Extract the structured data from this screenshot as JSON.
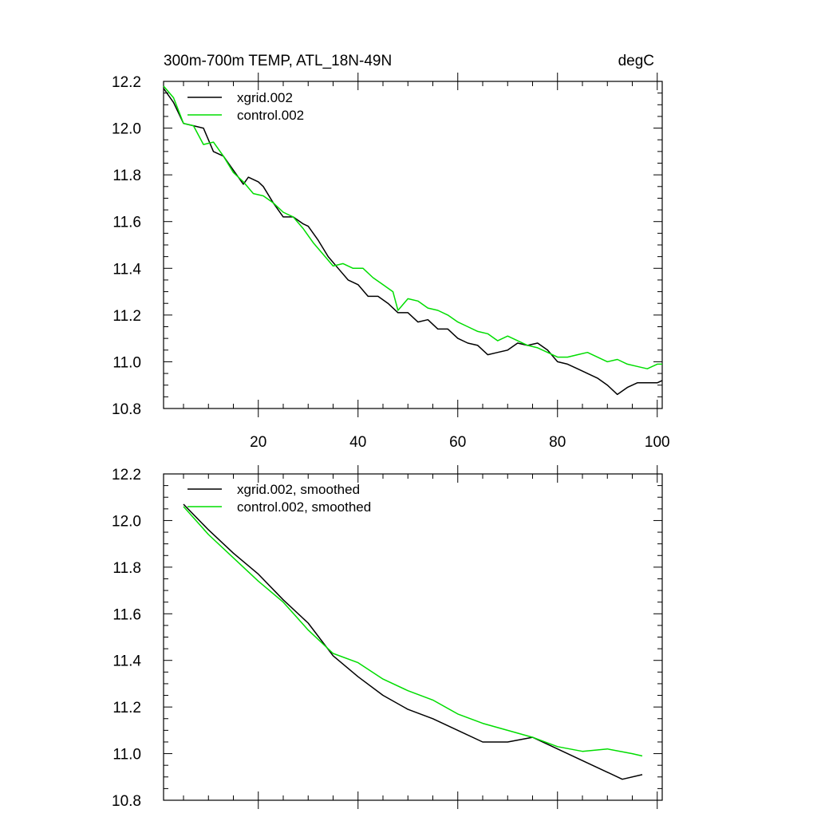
{
  "chart_data": [
    {
      "type": "line",
      "title": "300m-700m TEMP, ATL_18N-49N",
      "units_label": "degC",
      "xlabel": "",
      "ylabel": "",
      "xlim": [
        1,
        101
      ],
      "ylim": [
        10.8,
        12.2
      ],
      "x_ticks": [
        20,
        40,
        60,
        80,
        100
      ],
      "x_tick_labels": [
        "20",
        "40",
        "60",
        "80",
        "100"
      ],
      "y_ticks": [
        10.8,
        11.0,
        11.2,
        11.4,
        11.6,
        11.8,
        12.0,
        12.2
      ],
      "y_tick_labels": [
        "10.8",
        "11.0",
        "11.2",
        "11.4",
        "11.6",
        "11.8",
        "12.0",
        "12.2"
      ],
      "legend_position": "top-left",
      "series": [
        {
          "name": "xgrid.002",
          "color": "#000000",
          "points": [
            [
              1,
              12.17
            ],
            [
              3,
              12.11
            ],
            [
              5,
              12.02
            ],
            [
              7,
              12.01
            ],
            [
              9,
              12.0
            ],
            [
              11,
              11.9
            ],
            [
              13,
              11.88
            ],
            [
              15,
              11.82
            ],
            [
              17,
              11.76
            ],
            [
              18,
              11.79
            ],
            [
              20,
              11.77
            ],
            [
              21,
              11.75
            ],
            [
              23,
              11.68
            ],
            [
              25,
              11.62
            ],
            [
              27,
              11.62
            ],
            [
              29,
              11.59
            ],
            [
              30,
              11.58
            ],
            [
              32,
              11.52
            ],
            [
              34,
              11.45
            ],
            [
              36,
              11.4
            ],
            [
              38,
              11.35
            ],
            [
              40,
              11.33
            ],
            [
              42,
              11.28
            ],
            [
              44,
              11.28
            ],
            [
              46,
              11.25
            ],
            [
              48,
              11.21
            ],
            [
              50,
              11.21
            ],
            [
              52,
              11.17
            ],
            [
              54,
              11.18
            ],
            [
              56,
              11.14
            ],
            [
              58,
              11.14
            ],
            [
              60,
              11.1
            ],
            [
              62,
              11.08
            ],
            [
              64,
              11.07
            ],
            [
              66,
              11.03
            ],
            [
              68,
              11.04
            ],
            [
              70,
              11.05
            ],
            [
              72,
              11.08
            ],
            [
              74,
              11.07
            ],
            [
              76,
              11.08
            ],
            [
              78,
              11.05
            ],
            [
              80,
              11.0
            ],
            [
              82,
              10.99
            ],
            [
              84,
              10.97
            ],
            [
              86,
              10.95
            ],
            [
              88,
              10.93
            ],
            [
              90,
              10.9
            ],
            [
              92,
              10.86
            ],
            [
              94,
              10.89
            ],
            [
              96,
              10.91
            ],
            [
              98,
              10.91
            ],
            [
              100,
              10.91
            ],
            [
              101,
              10.92
            ]
          ]
        },
        {
          "name": "control.002",
          "color": "#00dd00",
          "points": [
            [
              1,
              12.18
            ],
            [
              3,
              12.13
            ],
            [
              5,
              12.02
            ],
            [
              7,
              12.01
            ],
            [
              9,
              11.93
            ],
            [
              11,
              11.94
            ],
            [
              13,
              11.88
            ],
            [
              15,
              11.81
            ],
            [
              17,
              11.77
            ],
            [
              19,
              11.72
            ],
            [
              21,
              11.71
            ],
            [
              23,
              11.68
            ],
            [
              25,
              11.64
            ],
            [
              27,
              11.62
            ],
            [
              29,
              11.57
            ],
            [
              31,
              11.51
            ],
            [
              33,
              11.46
            ],
            [
              35,
              11.41
            ],
            [
              37,
              11.42
            ],
            [
              39,
              11.4
            ],
            [
              41,
              11.4
            ],
            [
              43,
              11.36
            ],
            [
              45,
              11.33
            ],
            [
              47,
              11.3
            ],
            [
              48,
              11.22
            ],
            [
              50,
              11.27
            ],
            [
              52,
              11.26
            ],
            [
              54,
              11.23
            ],
            [
              56,
              11.22
            ],
            [
              58,
              11.2
            ],
            [
              60,
              11.17
            ],
            [
              62,
              11.15
            ],
            [
              64,
              11.13
            ],
            [
              66,
              11.12
            ],
            [
              68,
              11.09
            ],
            [
              70,
              11.11
            ],
            [
              72,
              11.09
            ],
            [
              74,
              11.07
            ],
            [
              76,
              11.06
            ],
            [
              78,
              11.04
            ],
            [
              80,
              11.02
            ],
            [
              82,
              11.02
            ],
            [
              84,
              11.03
            ],
            [
              86,
              11.04
            ],
            [
              88,
              11.02
            ],
            [
              90,
              11.0
            ],
            [
              92,
              11.01
            ],
            [
              94,
              10.99
            ],
            [
              96,
              10.98
            ],
            [
              98,
              10.97
            ],
            [
              100,
              10.99
            ],
            [
              101,
              10.99
            ]
          ]
        }
      ]
    },
    {
      "type": "line",
      "title": "",
      "xlabel": "",
      "ylabel": "",
      "xlim": [
        1,
        101
      ],
      "ylim": [
        10.8,
        12.2
      ],
      "x_ticks": [
        20,
        40,
        60,
        80,
        100
      ],
      "x_tick_labels": [],
      "y_ticks": [
        10.8,
        11.0,
        11.2,
        11.4,
        11.6,
        11.8,
        12.0,
        12.2
      ],
      "y_tick_labels": [
        "10.8",
        "11.0",
        "11.2",
        "11.4",
        "11.6",
        "11.8",
        "12.0",
        "12.2"
      ],
      "legend_position": "top-left",
      "series": [
        {
          "name": "xgrid.002, smoothed",
          "color": "#000000",
          "points": [
            [
              5,
              12.07
            ],
            [
              10,
              11.96
            ],
            [
              15,
              11.86
            ],
            [
              20,
              11.77
            ],
            [
              25,
              11.66
            ],
            [
              30,
              11.56
            ],
            [
              35,
              11.42
            ],
            [
              40,
              11.33
            ],
            [
              45,
              11.25
            ],
            [
              50,
              11.19
            ],
            [
              55,
              11.15
            ],
            [
              60,
              11.1
            ],
            [
              65,
              11.05
            ],
            [
              70,
              11.05
            ],
            [
              75,
              11.07
            ],
            [
              80,
              11.02
            ],
            [
              85,
              10.97
            ],
            [
              90,
              10.92
            ],
            [
              93,
              10.89
            ],
            [
              97,
              10.91
            ]
          ]
        },
        {
          "name": "control.002, smoothed",
          "color": "#00dd00",
          "points": [
            [
              5,
              12.06
            ],
            [
              10,
              11.94
            ],
            [
              15,
              11.84
            ],
            [
              20,
              11.74
            ],
            [
              25,
              11.65
            ],
            [
              30,
              11.53
            ],
            [
              35,
              11.43
            ],
            [
              40,
              11.39
            ],
            [
              45,
              11.32
            ],
            [
              50,
              11.27
            ],
            [
              55,
              11.23
            ],
            [
              60,
              11.17
            ],
            [
              65,
              11.13
            ],
            [
              70,
              11.1
            ],
            [
              75,
              11.07
            ],
            [
              80,
              11.03
            ],
            [
              85,
              11.01
            ],
            [
              90,
              11.02
            ],
            [
              95,
              11.0
            ],
            [
              97,
              10.99
            ]
          ]
        }
      ]
    }
  ]
}
